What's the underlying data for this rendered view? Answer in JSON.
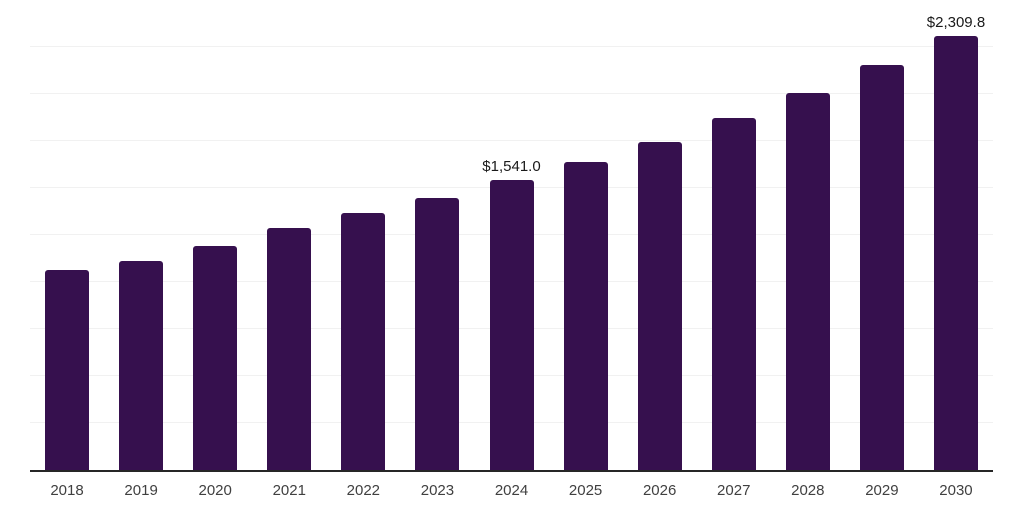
{
  "chart_data": {
    "type": "bar",
    "title": "",
    "xlabel": "",
    "ylabel": "",
    "categories": [
      "2018",
      "2019",
      "2020",
      "2021",
      "2022",
      "2023",
      "2024",
      "2025",
      "2026",
      "2027",
      "2028",
      "2029",
      "2030"
    ],
    "values": [
      1063,
      1112,
      1194,
      1287,
      1369,
      1449,
      1541.0,
      1640,
      1745,
      1871,
      2003,
      2157,
      2309.8
    ],
    "point_labels": [
      "",
      "",
      "",
      "",
      "",
      "",
      "$1,541.0",
      "",
      "",
      "",
      "",
      "",
      "$2,309.8"
    ],
    "ylim": [
      0,
      2500
    ],
    "grid_interval": 250,
    "grid": true,
    "legend": "none",
    "y_axis_tick_labels": "none"
  },
  "colors": {
    "bar": "#36104e",
    "axis": "#262626",
    "gridline": "#f1f1f1",
    "tick_label": "#404040",
    "data_label": "#1a1a1a",
    "background": "#ffffff"
  }
}
